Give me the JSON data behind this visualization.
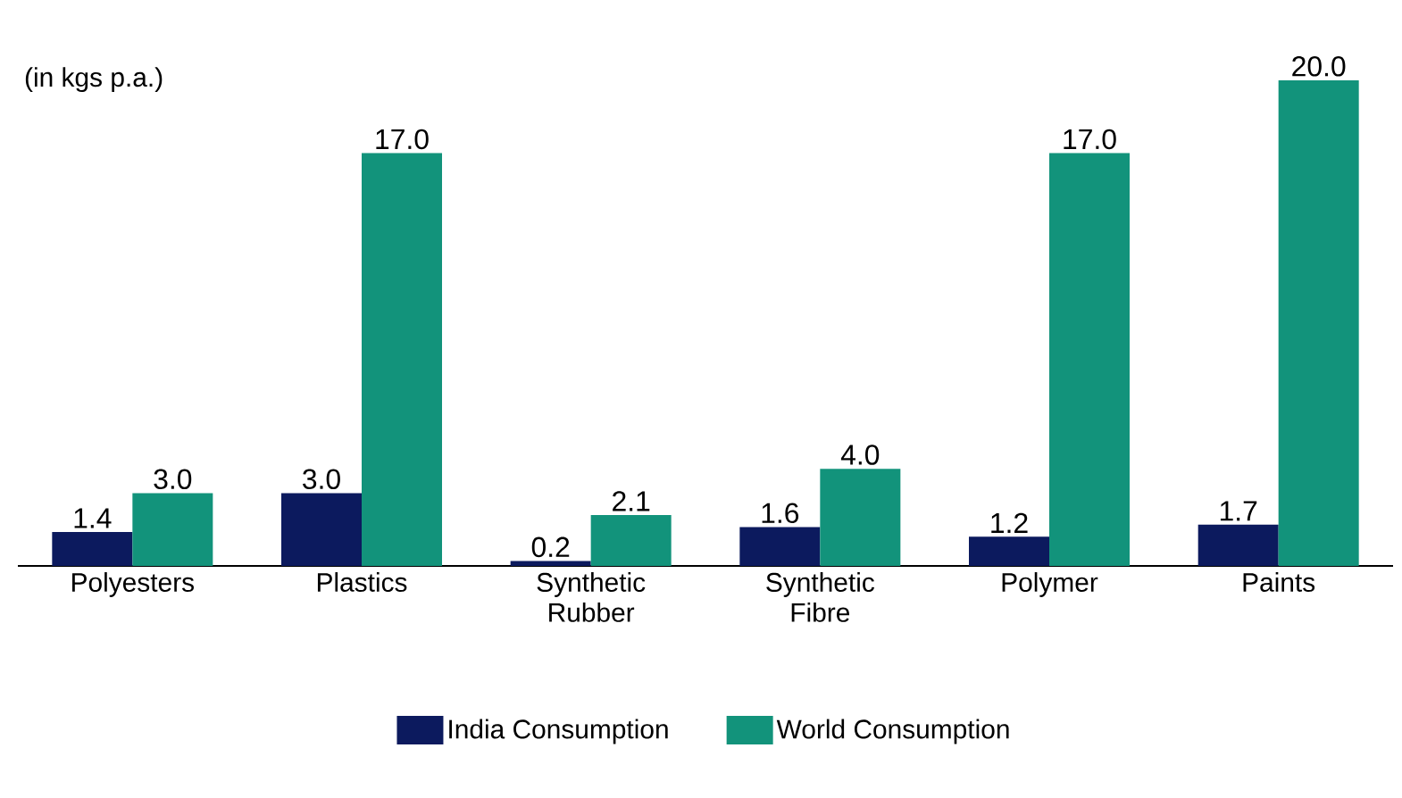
{
  "chart_data": {
    "type": "bar",
    "annotations": [
      "(in kgs p.a.)"
    ],
    "categories": [
      "Polyesters",
      "Plastics",
      "Synthetic Rubber",
      "Synthetic Fibre",
      "Polymer",
      "Paints"
    ],
    "series": [
      {
        "name": "India Consumption",
        "color": "#0c1a5e",
        "values": [
          1.4,
          3.0,
          0.2,
          1.6,
          1.2,
          1.7
        ],
        "value_labels": [
          "1.4",
          "3.0",
          "0.2",
          "1.6",
          "1.2",
          "1.7"
        ]
      },
      {
        "name": "World Consumption",
        "color": "#12937b",
        "values": [
          3.0,
          17.0,
          2.1,
          4.0,
          17.0,
          20.0
        ],
        "value_labels": [
          "3.0",
          "17.0",
          "2.1",
          "4.0",
          "17.0",
          "20.0"
        ]
      }
    ],
    "ylim": [
      0,
      20
    ],
    "legend": "bottom"
  }
}
